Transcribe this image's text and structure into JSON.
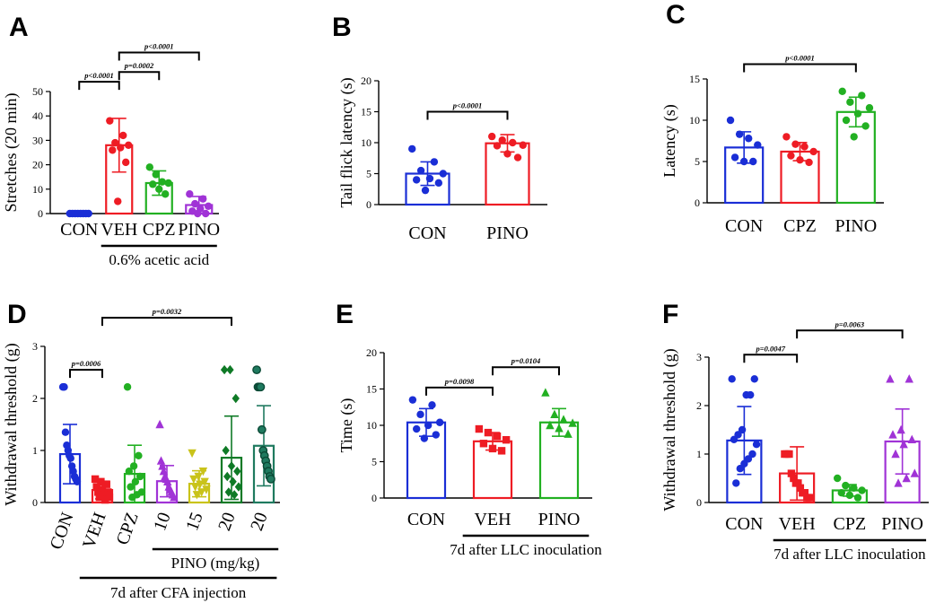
{
  "chart_data": [
    {
      "panel": "A",
      "type": "bar",
      "ylabel": "Stretches (20 min)",
      "ylim": [
        0,
        50
      ],
      "yticks": [
        0,
        10,
        20,
        30,
        40,
        50
      ],
      "categories": [
        "CON",
        "VEH",
        "CPZ",
        "PINO"
      ],
      "colors": [
        "#1a2ed6",
        "#ee1c24",
        "#22b022",
        "#a033d6"
      ],
      "marker": "circle",
      "means": [
        0,
        28,
        12.5,
        3.5
      ],
      "sd": [
        0,
        11,
        5,
        3.5
      ],
      "points": [
        [
          0,
          0,
          0,
          0,
          0,
          0,
          0,
          0
        ],
        [
          38,
          32,
          29,
          28,
          27,
          26,
          21,
          5
        ],
        [
          19,
          16,
          13,
          12.5,
          12,
          10,
          8
        ],
        [
          8,
          6,
          4,
          3,
          2,
          1,
          0,
          0
        ]
      ],
      "comparisons": [
        {
          "a": 0,
          "b": 1,
          "p": "p<0.0001",
          "y": 54
        },
        {
          "a": 1,
          "b": 2,
          "p": "p=0.0002",
          "y": 58
        },
        {
          "a": 1,
          "b": 3,
          "p": "p<0.0001",
          "y": 66
        }
      ],
      "group_label": {
        "text": "0.6% acetic acid",
        "from": 1,
        "to": 3
      }
    },
    {
      "panel": "B",
      "type": "bar",
      "ylabel": "Tail flick latency (s)",
      "ylim": [
        0,
        20
      ],
      "yticks": [
        0,
        5,
        10,
        15,
        20
      ],
      "categories": [
        "CON",
        "PINO"
      ],
      "colors": [
        "#1a2ed6",
        "#ee1c24"
      ],
      "marker": "circle",
      "means": [
        5,
        9.9
      ],
      "sd": [
        1.9,
        1.4
      ],
      "points": [
        [
          9,
          6.9,
          5.5,
          5,
          4.2,
          4,
          3.5,
          2.3
        ],
        [
          11,
          10.4,
          10,
          9.6,
          9.5,
          8.2,
          7.6
        ]
      ],
      "comparisons": [
        {
          "a": 0,
          "b": 1,
          "p": "p<0.0001",
          "y": 15
        }
      ]
    },
    {
      "panel": "C",
      "type": "bar",
      "ylabel": "Latency (s)",
      "ylim": [
        0,
        15
      ],
      "yticks": [
        0,
        5,
        10,
        15
      ],
      "categories": [
        "CON",
        "CPZ",
        "PINO"
      ],
      "colors": [
        "#1a2ed6",
        "#ee1c24",
        "#22b022"
      ],
      "marker": "circle",
      "means": [
        6.7,
        6.2,
        11
      ],
      "sd": [
        1.9,
        1.1,
        1.8
      ],
      "points": [
        [
          10,
          8.3,
          7.8,
          7,
          5.5,
          5,
          5
        ],
        [
          8,
          7.1,
          6.8,
          6.2,
          5.7,
          5.2,
          4.9
        ],
        [
          13.5,
          13,
          12.2,
          11.5,
          10.8,
          10,
          9.3,
          8
        ]
      ],
      "comparisons": [
        {
          "a": 0,
          "b": 2,
          "p": "p<0.0001",
          "y": 16.8
        }
      ]
    },
    {
      "panel": "D",
      "type": "bar",
      "ylabel": "Withdrawal threshold (g)",
      "ylim": [
        0,
        3
      ],
      "yticks": [
        0,
        1,
        2,
        3
      ],
      "categories": [
        "CON",
        "VEH",
        "CPZ",
        "10",
        "15",
        "20",
        "20"
      ],
      "colors": [
        "#1a2ed6",
        "#ee1c24",
        "#22b022",
        "#a033d6",
        "#c9c31a",
        "#0f7a26",
        "#1f7a5f"
      ],
      "markers": [
        "circle",
        "square",
        "circle",
        "triangle",
        "triangle-down",
        "diamond",
        "circle-open"
      ],
      "means": [
        0.93,
        0.24,
        0.55,
        0.41,
        0.36,
        0.86,
        1.09
      ],
      "sd": [
        0.57,
        0.17,
        0.55,
        0.3,
        0.25,
        0.8,
        0.77
      ],
      "points": [
        [
          2.22,
          2.22,
          1.35,
          1.1,
          1.0,
          0.9,
          0.85,
          0.7,
          0.6,
          0.5,
          0.45,
          0.4
        ],
        [
          0.45,
          0.4,
          0.35,
          0.3,
          0.25,
          0.2,
          0.2,
          0.15,
          0.1,
          0.1,
          0.05
        ],
        [
          2.22,
          0.9,
          0.7,
          0.6,
          0.5,
          0.4,
          0.3,
          0.2,
          0.15,
          0.1
        ],
        [
          1.5,
          0.8,
          0.7,
          0.6,
          0.5,
          0.45,
          0.4,
          0.3,
          0.25,
          0.2,
          0.15,
          0.1
        ],
        [
          0.95,
          0.6,
          0.5,
          0.45,
          0.4,
          0.35,
          0.3,
          0.25,
          0.2,
          0.15
        ],
        [
          2.55,
          2.55,
          2.0,
          1.0,
          0.7,
          0.6,
          0.5,
          0.4,
          0.3,
          0.2,
          0.15
        ],
        [
          2.55,
          2.22,
          2.22,
          2.22,
          1.4,
          1.0,
          0.9,
          0.8,
          0.7,
          0.6,
          0.5,
          0.45
        ]
      ],
      "comparisons": [
        {
          "a": 0,
          "b": 1,
          "p": "p=0.0006",
          "y": 2.55
        },
        {
          "a": 1,
          "b": 5,
          "p": "p=0.0032",
          "y": 3.55
        }
      ],
      "group_label": {
        "text": "PINO (mg/kg)",
        "from": 3,
        "to": 6
      },
      "group_label2": {
        "text": "7d after CFA injection",
        "from": 1,
        "to": 6
      }
    },
    {
      "panel": "E",
      "type": "bar",
      "ylabel": "Time (s)",
      "ylim": [
        0,
        20
      ],
      "yticks": [
        0,
        5,
        10,
        15,
        20
      ],
      "categories": [
        "CON",
        "VEH",
        "PINO"
      ],
      "colors": [
        "#1a2ed6",
        "#ee1c24",
        "#22b022"
      ],
      "markers": [
        "circle",
        "square",
        "triangle"
      ],
      "means": [
        10.4,
        7.8,
        10.4
      ],
      "sd": [
        1.9,
        1.2,
        1.9
      ],
      "points": [
        [
          13.5,
          12.8,
          11.5,
          10.4,
          10,
          9.5,
          8.7,
          8.2
        ],
        [
          9.5,
          9,
          8.5,
          8,
          7.5,
          6.8,
          6.5
        ],
        [
          14.5,
          11.5,
          10.8,
          10.3,
          10,
          9.6,
          8.8
        ]
      ],
      "comparisons": [
        {
          "a": 0,
          "b": 1,
          "p": "p=0.0098",
          "y": 15.2
        },
        {
          "a": 1,
          "b": 2,
          "p": "p=0.0104",
          "y": 18
        }
      ],
      "group_label": {
        "text": "7d after LLC inoculation",
        "from": 1,
        "to": 2
      }
    },
    {
      "panel": "F",
      "type": "bar",
      "ylabel": "Withdrawal threshold (g)",
      "ylim": [
        0,
        3
      ],
      "yticks": [
        0,
        1,
        2,
        3
      ],
      "categories": [
        "CON",
        "VEH",
        "CPZ",
        "PINO"
      ],
      "colors": [
        "#1a2ed6",
        "#ee1c24",
        "#22b022",
        "#a033d6"
      ],
      "markers": [
        "circle",
        "square",
        "circle",
        "triangle"
      ],
      "means": [
        1.28,
        0.6,
        0.25,
        1.26
      ],
      "sd": [
        0.7,
        0.55,
        0.12,
        0.67
      ],
      "points": [
        [
          2.55,
          2.55,
          2.22,
          2.22,
          1.5,
          1.4,
          1.3,
          1.2,
          1.0,
          0.9,
          0.8,
          0.7,
          0.4
        ],
        [
          1.0,
          1.0,
          1.0,
          0.6,
          0.5,
          0.4,
          0.4,
          0.3,
          0.2,
          0.2,
          0.1,
          0.1
        ],
        [
          0.5,
          0.35,
          0.3,
          0.25,
          0.2,
          0.15,
          0.1
        ],
        [
          2.55,
          2.55,
          1.5,
          1.4,
          1.3,
          1.2,
          1.0,
          0.6,
          0.5,
          0.4
        ]
      ],
      "comparisons": [
        {
          "a": 0,
          "b": 1,
          "p": "p=0.0047",
          "y": 3.05
        },
        {
          "a": 1,
          "b": 3,
          "p": "p=0.0063",
          "y": 3.55
        }
      ],
      "group_label": {
        "text": "7d after LLC inoculation",
        "from": 1,
        "to": 3
      }
    }
  ]
}
